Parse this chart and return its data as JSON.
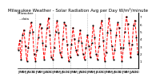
{
  "title": "Milwaukee Weather - Solar Radiation Avg per Day W/m²/minute",
  "line_color": "red",
  "marker_color": "black",
  "line_style": "--",
  "marker": "s",
  "bg_color": "white",
  "ylim": [
    0,
    7.5
  ],
  "yticks": [
    1,
    2,
    3,
    4,
    5,
    6,
    7
  ],
  "values": [
    2.5,
    3.8,
    1.2,
    4.5,
    5.2,
    3.0,
    1.0,
    2.8,
    4.8,
    6.2,
    5.0,
    2.0,
    1.0,
    2.5,
    4.2,
    6.0,
    5.5,
    3.5,
    1.2,
    3.0,
    5.5,
    6.8,
    4.5,
    1.5,
    1.2,
    2.8,
    5.0,
    6.5,
    4.8,
    2.2,
    1.5,
    4.0,
    6.2,
    5.8,
    3.2,
    1.0,
    1.5,
    3.2,
    5.5,
    4.0,
    2.5,
    1.8,
    3.8,
    5.2,
    3.5,
    2.0,
    1.2,
    2.8,
    4.5,
    3.0,
    1.5,
    3.5,
    5.8,
    4.2,
    2.0,
    1.2,
    3.0,
    5.5,
    6.5,
    3.8,
    1.0,
    2.2,
    4.8,
    6.8,
    5.2,
    3.0,
    1.2,
    2.5,
    4.5,
    6.2,
    5.5,
    2.8,
    1.0,
    2.8,
    5.0,
    7.0,
    6.0,
    3.5,
    1.5,
    3.2,
    5.8,
    6.5,
    4.2,
    2.0
  ],
  "vline_positions": [
    12,
    24,
    36,
    48,
    60,
    72
  ],
  "grid_color": "#999999",
  "title_fontsize": 4.0,
  "tick_fontsize": 3.0,
  "left_labels": [
    "Milwaukee",
    "  ...data"
  ],
  "linewidth": 0.7,
  "markersize": 1.0
}
